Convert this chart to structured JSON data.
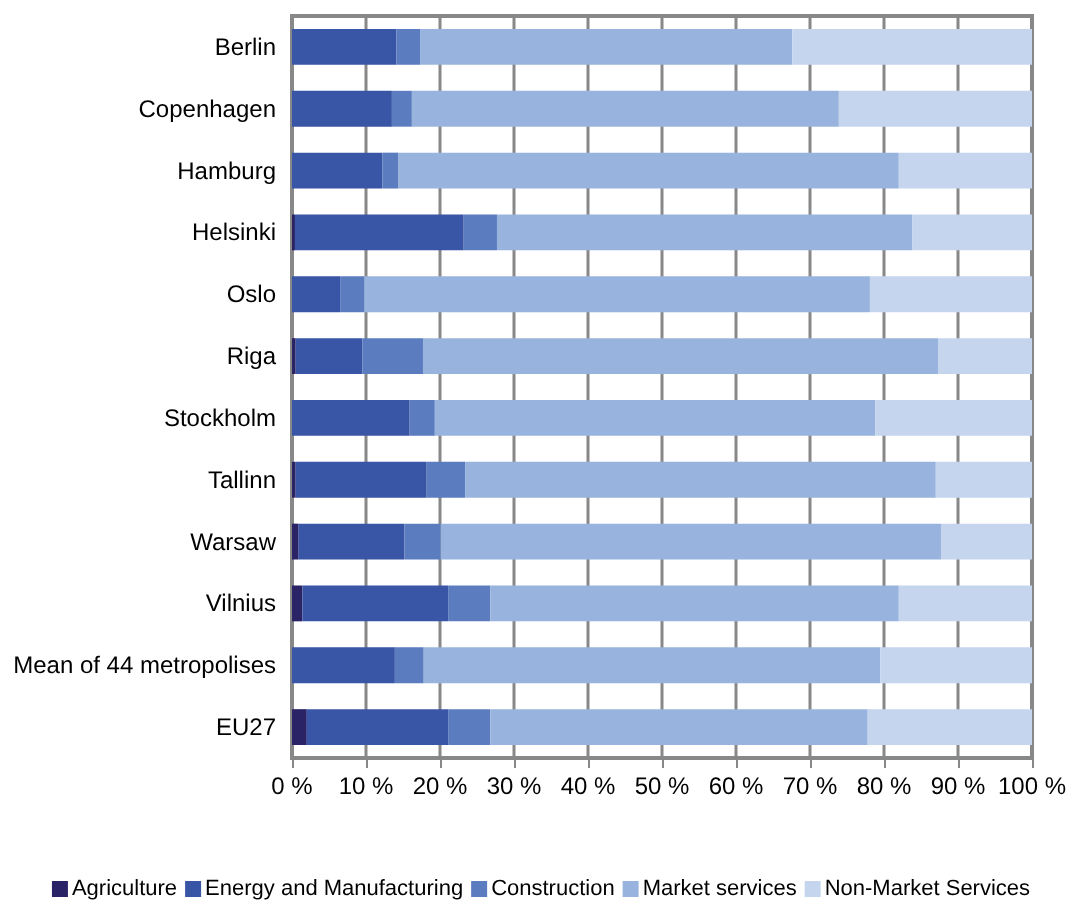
{
  "chart_data": {
    "type": "bar",
    "orientation": "horizontal",
    "stacked": true,
    "categories": [
      "Berlin",
      "Copenhagen",
      "Hamburg",
      "Helsinki",
      "Oslo",
      "Riga",
      "Stockholm",
      "Tallinn",
      "Warsaw",
      "Vilnius",
      "Mean of 44 metropolises",
      "EU27"
    ],
    "series": [
      {
        "name": "Agriculture",
        "color": "#2a2466",
        "values": [
          0,
          0,
          0,
          0.4,
          0,
          0.5,
          0,
          0.5,
          0.9,
          1.4,
          0,
          2.0
        ]
      },
      {
        "name": "Energy and Manufacturing",
        "color": "#3955a6",
        "values": [
          14.1,
          13.5,
          12.2,
          22.8,
          6.5,
          9.0,
          15.9,
          17.7,
          14.3,
          19.7,
          13.9,
          19.1
        ]
      },
      {
        "name": "Construction",
        "color": "#5b7cbf",
        "values": [
          3.2,
          2.7,
          2.2,
          4.5,
          3.3,
          8.2,
          3.4,
          5.2,
          4.9,
          5.7,
          3.9,
          5.7
        ]
      },
      {
        "name": "Market services",
        "color": "#98b4de",
        "values": [
          50.3,
          57.7,
          67.6,
          56.1,
          68.3,
          69.6,
          59.5,
          63.6,
          67.6,
          55.2,
          61.7,
          51.0
        ]
      },
      {
        "name": "Non-Market Services",
        "color": "#c5d5ee",
        "values": [
          32.4,
          26.1,
          18.0,
          16.2,
          21.9,
          12.7,
          21.2,
          13.0,
          12.3,
          18.0,
          20.5,
          22.2
        ]
      }
    ],
    "xlim": [
      0,
      100
    ],
    "xticks": [
      {
        "value": 0,
        "label": "0 %"
      },
      {
        "value": 10,
        "label": "10 %"
      },
      {
        "value": 20,
        "label": "20 %"
      },
      {
        "value": 30,
        "label": "30 %"
      },
      {
        "value": 40,
        "label": "40 %"
      },
      {
        "value": 50,
        "label": "50 %"
      },
      {
        "value": 60,
        "label": "60 %"
      },
      {
        "value": 70,
        "label": "70 %"
      },
      {
        "value": 80,
        "label": "80 %"
      },
      {
        "value": 90,
        "label": "90 %"
      },
      {
        "value": 100,
        "label": "100 %"
      }
    ],
    "grid": "x",
    "legend": "bottom"
  }
}
